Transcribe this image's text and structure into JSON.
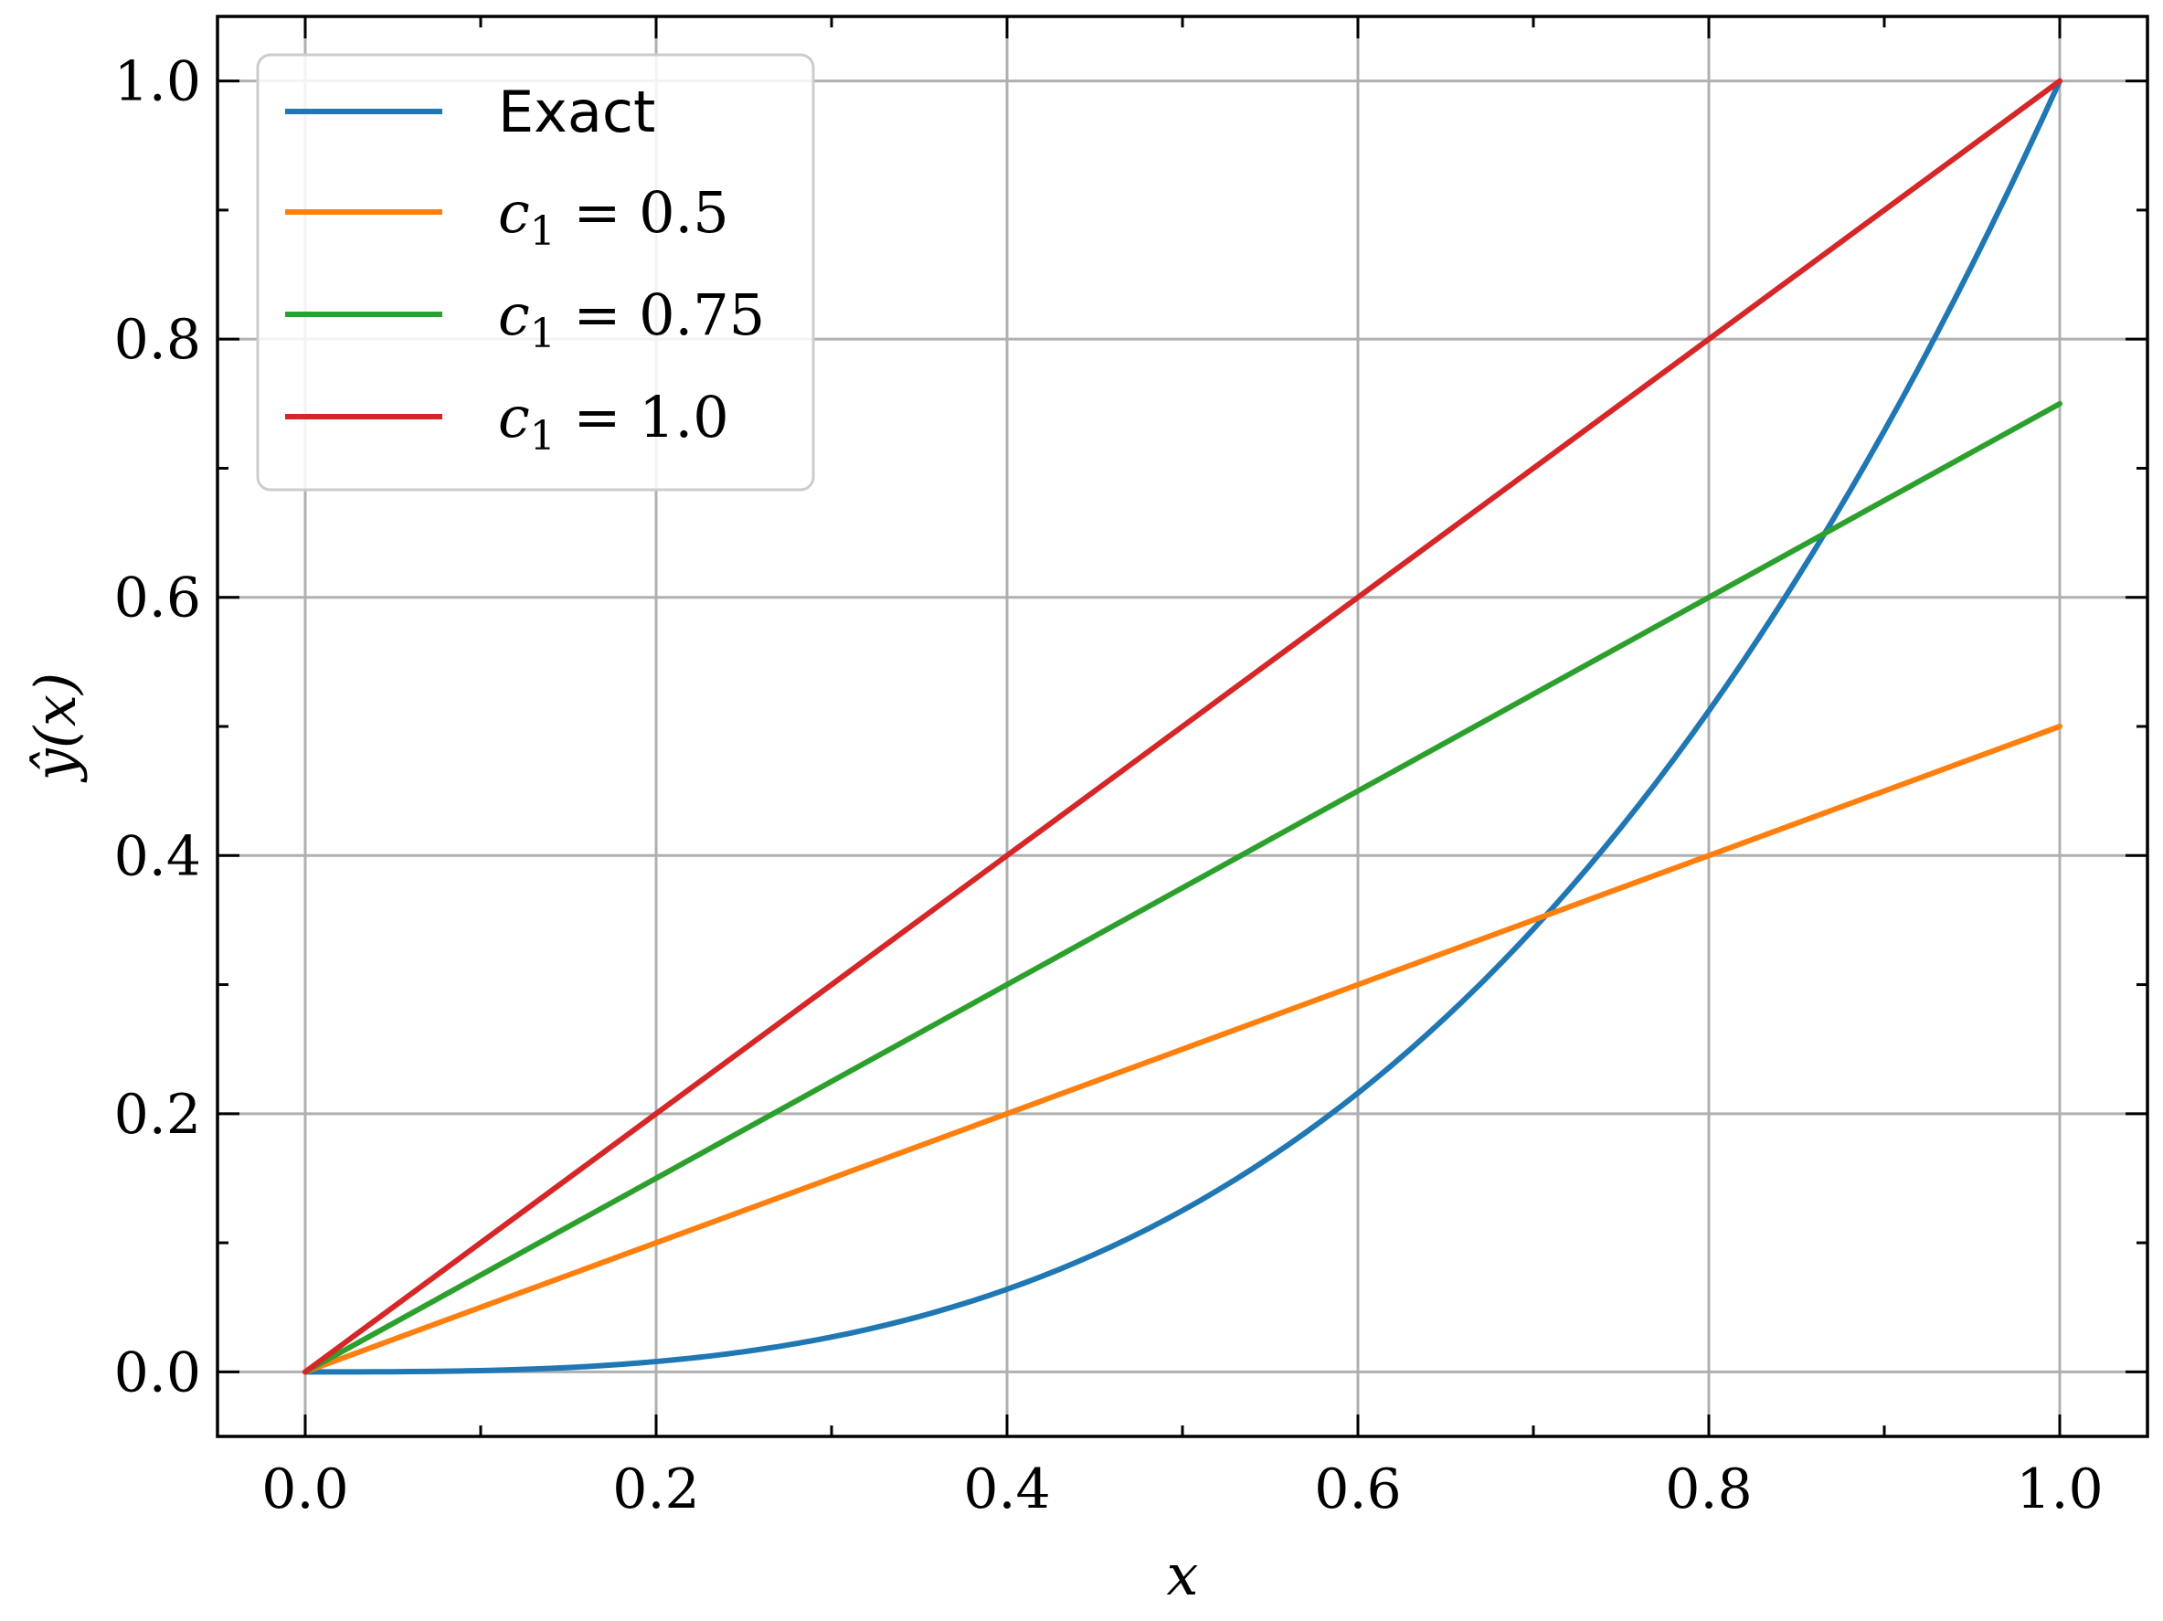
{
  "chart_data": {
    "type": "line",
    "title": "",
    "xlabel": "x",
    "ylabel": "ŷ(x)",
    "xlim": [
      -0.05,
      1.05
    ],
    "ylim": [
      -0.05,
      1.05
    ],
    "xticks": [
      0.0,
      0.2,
      0.4,
      0.6,
      0.8,
      1.0
    ],
    "yticks": [
      0.0,
      0.2,
      0.4,
      0.6,
      0.8,
      1.0
    ],
    "xtick_labels": [
      "0.0",
      "0.2",
      "0.4",
      "0.6",
      "0.8",
      "1.0"
    ],
    "ytick_labels": [
      "0.0",
      "0.2",
      "0.4",
      "0.6",
      "0.8",
      "1.0"
    ],
    "grid": true,
    "legend_position": "top-left",
    "x": [
      0.0,
      0.1,
      0.2,
      0.3,
      0.4,
      0.5,
      0.6,
      0.7,
      0.8,
      0.9,
      1.0
    ],
    "series": [
      {
        "name": "Exact",
        "color": "#1f77b4",
        "values": [
          0.0,
          0.001,
          0.008,
          0.027,
          0.064,
          0.125,
          0.216,
          0.343,
          0.512,
          0.729,
          1.0
        ]
      },
      {
        "name": "c",
        "name_sub": "1",
        "name_rest": " = 0.5",
        "color": "#ff7f0e",
        "values": [
          0.0,
          0.05,
          0.1,
          0.15,
          0.2,
          0.25,
          0.3,
          0.35,
          0.4,
          0.45,
          0.5
        ]
      },
      {
        "name": "c",
        "name_sub": "1",
        "name_rest": " = 0.75",
        "color": "#2ca02c",
        "values": [
          0.0,
          0.075,
          0.15,
          0.225,
          0.3,
          0.375,
          0.45,
          0.525,
          0.6,
          0.675,
          0.75
        ]
      },
      {
        "name": "c",
        "name_sub": "1",
        "name_rest": " = 1.0",
        "color": "#d62728",
        "values": [
          0.0,
          0.1,
          0.2,
          0.3,
          0.4,
          0.5,
          0.6,
          0.7,
          0.8,
          0.9,
          1.0
        ]
      }
    ]
  }
}
